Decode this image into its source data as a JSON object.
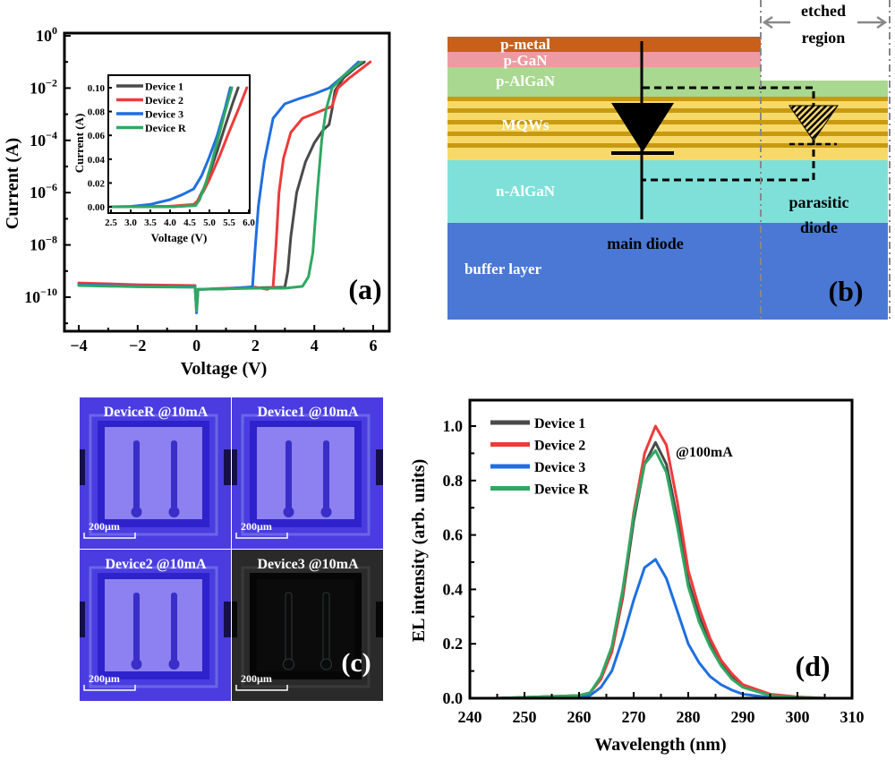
{
  "colors": {
    "device1": "#4a4a4a",
    "device2": "#ee3b3b",
    "device3": "#1f6fe0",
    "deviceR": "#2fa862"
  },
  "chart_data": [
    {
      "panel": "(a)",
      "type": "line",
      "xlabel": "Voltage (V)",
      "ylabel": "Current (A)",
      "xlim": [
        -4.5,
        6.5
      ],
      "ylim": [
        5e-12,
        1
      ],
      "yscale": "log",
      "xticks": [
        -4,
        -2,
        0,
        2,
        4,
        6
      ],
      "xtick_labels": [
        "−4",
        "−2",
        "0",
        "2",
        "4",
        "6"
      ],
      "yticks": [
        1,
        0.01,
        0.0001,
        1e-06,
        1e-08,
        1e-10
      ],
      "ytick_exponents": [
        "0",
        "−2",
        "−4",
        "−6",
        "−8",
        "−10"
      ],
      "series": [
        {
          "name": "Device 1",
          "x": [
            -4,
            -2,
            -0.05,
            0,
            0.05,
            1,
            2,
            3.0,
            3.1,
            3.2,
            3.4,
            3.7,
            4.0,
            4.3,
            4.5,
            4.6,
            4.7,
            5.0,
            5.4,
            5.7
          ],
          "y": [
            3e-10,
            2.8e-10,
            2.6e-10,
            4e-11,
            2e-10,
            2.1e-10,
            2.3e-10,
            2.4e-10,
            1e-09,
            2e-08,
            1e-06,
            1.5e-05,
            8e-05,
            0.00025,
            0.0004,
            0.0015,
            0.008,
            0.025,
            0.06,
            0.1
          ]
        },
        {
          "name": "Device 2",
          "x": [
            -4,
            -2,
            -0.05,
            0,
            0.05,
            1,
            2,
            2.4,
            2.6,
            2.7,
            2.8,
            2.95,
            3.2,
            3.6,
            4.2,
            4.6,
            4.8,
            5.2,
            5.6,
            5.9
          ],
          "y": [
            3.5e-10,
            3e-10,
            2.8e-10,
            4e-11,
            2e-10,
            2.2e-10,
            2.4e-10,
            2e-10,
            2.5e-10,
            1e-08,
            1e-06,
            2e-05,
            0.0002,
            0.0007,
            0.0013,
            0.002,
            0.01,
            0.025,
            0.055,
            0.1
          ]
        },
        {
          "name": "Device 3",
          "x": [
            -4,
            -2,
            -0.05,
            0,
            0.05,
            1,
            1.9,
            2.0,
            2.1,
            2.3,
            2.6,
            3.0,
            3.5,
            4.0,
            4.5,
            5.0,
            5.5
          ],
          "y": [
            3e-10,
            2.6e-10,
            2.5e-10,
            2.5e-11,
            2e-10,
            2.1e-10,
            2.5e-10,
            1e-08,
            3e-07,
            1.5e-05,
            0.0007,
            0.0025,
            0.004,
            0.006,
            0.01,
            0.03,
            0.1
          ]
        },
        {
          "name": "Device R",
          "x": [
            -4,
            -2,
            -0.05,
            0,
            0.05,
            1,
            2,
            3.0,
            3.6,
            3.8,
            3.95,
            4.1,
            4.25,
            4.4,
            4.6,
            5.0,
            5.6
          ],
          "y": [
            2.8e-10,
            2.5e-10,
            2.4e-10,
            3e-11,
            2e-10,
            2.1e-10,
            2.2e-10,
            2.2e-10,
            2.6e-10,
            6e-10,
            5e-09,
            1e-06,
            0.0001,
            0.0015,
            0.01,
            0.03,
            0.1
          ]
        }
      ],
      "inset": {
        "type": "line",
        "xlabel": "Voltage (V)",
        "ylabel": "Current (A)",
        "xlim": [
          2.5,
          6.0
        ],
        "ylim": [
          -0.005,
          0.11
        ],
        "xticks": [
          2.5,
          3.0,
          3.5,
          4.0,
          4.5,
          5.0,
          5.5,
          6.0
        ],
        "xtick_labels": [
          "2.5",
          "3.0",
          "3.5",
          "4.0",
          "4.5",
          "5.0",
          "5.5",
          "6.0"
        ],
        "yticks": [
          0,
          0.02,
          0.04,
          0.06,
          0.08,
          0.1
        ],
        "ytick_labels": [
          "0.00",
          "0.02",
          "0.04",
          "0.06",
          "0.08",
          "0.10"
        ],
        "legend": "top-left",
        "series": [
          {
            "name": "Device 1",
            "x": [
              2.5,
              4.0,
              4.6,
              4.7,
              4.85,
              5.0,
              5.2,
              5.4,
              5.6,
              5.73
            ],
            "y": [
              0,
              0,
              0.001,
              0.005,
              0.015,
              0.028,
              0.047,
              0.068,
              0.088,
              0.1
            ]
          },
          {
            "name": "Device 2",
            "x": [
              2.5,
              4.0,
              4.6,
              4.7,
              4.85,
              5.0,
              5.25,
              5.5,
              5.75,
              5.95
            ],
            "y": [
              0,
              0.0005,
              0.002,
              0.005,
              0.013,
              0.023,
              0.042,
              0.063,
              0.083,
              0.1
            ]
          },
          {
            "name": "Device 3",
            "x": [
              2.5,
              3.0,
              3.5,
              4.0,
              4.3,
              4.6,
              4.8,
              5.0,
              5.2,
              5.4,
              5.53
            ],
            "y": [
              0,
              0.0003,
              0.002,
              0.006,
              0.01,
              0.015,
              0.026,
              0.042,
              0.06,
              0.083,
              0.1
            ]
          },
          {
            "name": "Device R",
            "x": [
              2.5,
              4.0,
              4.65,
              4.75,
              4.9,
              5.05,
              5.2,
              5.4,
              5.57
            ],
            "y": [
              0,
              0,
              0.001,
              0.006,
              0.019,
              0.036,
              0.055,
              0.08,
              0.1
            ]
          }
        ]
      },
      "panel_label": "(a)"
    },
    {
      "panel": "(d)",
      "type": "line",
      "xlabel": "Wavelength (nm)",
      "ylabel": "EL intensity (arb. units)",
      "xlim": [
        240,
        310
      ],
      "ylim": [
        0,
        1.1
      ],
      "xticks": [
        240,
        250,
        260,
        270,
        280,
        290,
        300,
        310
      ],
      "xtick_labels": [
        "240",
        "250",
        "260",
        "270",
        "280",
        "290",
        "300",
        "310"
      ],
      "yticks": [
        0,
        0.2,
        0.4,
        0.6,
        0.8,
        1.0
      ],
      "ytick_labels": [
        "0.0",
        "0.2",
        "0.4",
        "0.6",
        "0.8",
        "1.0"
      ],
      "legend": "top-left",
      "annotation": "@100mA",
      "x": [
        245,
        260,
        262,
        264,
        266,
        268,
        270,
        272,
        274,
        276,
        278,
        280,
        282,
        284,
        286,
        288,
        290,
        295,
        300,
        305
      ],
      "series": [
        {
          "name": "Device 1",
          "y": [
            0,
            0.01,
            0.02,
            0.07,
            0.17,
            0.37,
            0.65,
            0.86,
            0.94,
            0.86,
            0.66,
            0.43,
            0.3,
            0.2,
            0.13,
            0.08,
            0.045,
            0.012,
            0.004,
            0
          ]
        },
        {
          "name": "Device 2",
          "y": [
            0,
            0.01,
            0.02,
            0.07,
            0.17,
            0.38,
            0.68,
            0.9,
            1.0,
            0.93,
            0.72,
            0.47,
            0.33,
            0.22,
            0.14,
            0.09,
            0.05,
            0.015,
            0.005,
            0
          ]
        },
        {
          "name": "Device 3",
          "y": [
            0,
            0.005,
            0.01,
            0.04,
            0.1,
            0.22,
            0.36,
            0.48,
            0.51,
            0.44,
            0.32,
            0.2,
            0.13,
            0.08,
            0.05,
            0.03,
            0.015,
            0.003,
            0,
            0
          ]
        },
        {
          "name": "Device R",
          "y": [
            0,
            0.01,
            0.02,
            0.08,
            0.19,
            0.4,
            0.67,
            0.86,
            0.91,
            0.83,
            0.63,
            0.41,
            0.28,
            0.19,
            0.12,
            0.07,
            0.04,
            0.01,
            0.003,
            0
          ]
        }
      ],
      "panel_label": "(d)"
    }
  ],
  "diagram_b": {
    "layers": {
      "p_metal": "p-metal",
      "p_gan": "p-GaN",
      "p_algan": "p-AlGaN",
      "mqws": "MQWs",
      "n_algan": "n-AlGaN",
      "buffer": "buffer layer"
    },
    "layer_colors": {
      "p_metal": "#c8601a",
      "p_gan": "#ee9aa2",
      "p_algan": "#a9d890",
      "mqw_light": "#f7d96a",
      "mqw_dark": "#c89a10",
      "n_algan": "#7fe0da",
      "buffer": "#4a78d4"
    },
    "etched_region": [
      "etched",
      "region"
    ],
    "main_diode": "main diode",
    "parasitic_diode": [
      "parasitic",
      "diode"
    ],
    "panel_label": "(b)"
  },
  "micrographs_c": {
    "tiles": [
      {
        "label": "DeviceR @10mA",
        "scale": "200µm",
        "emitting": true
      },
      {
        "label": "Device1 @10mA",
        "scale": "200µm",
        "emitting": true
      },
      {
        "label": "Device2 @10mA",
        "scale": "200µm",
        "emitting": true
      },
      {
        "label": "Device3 @10mA",
        "scale": "200µm",
        "emitting": false
      }
    ],
    "panel_label": "(c)"
  }
}
